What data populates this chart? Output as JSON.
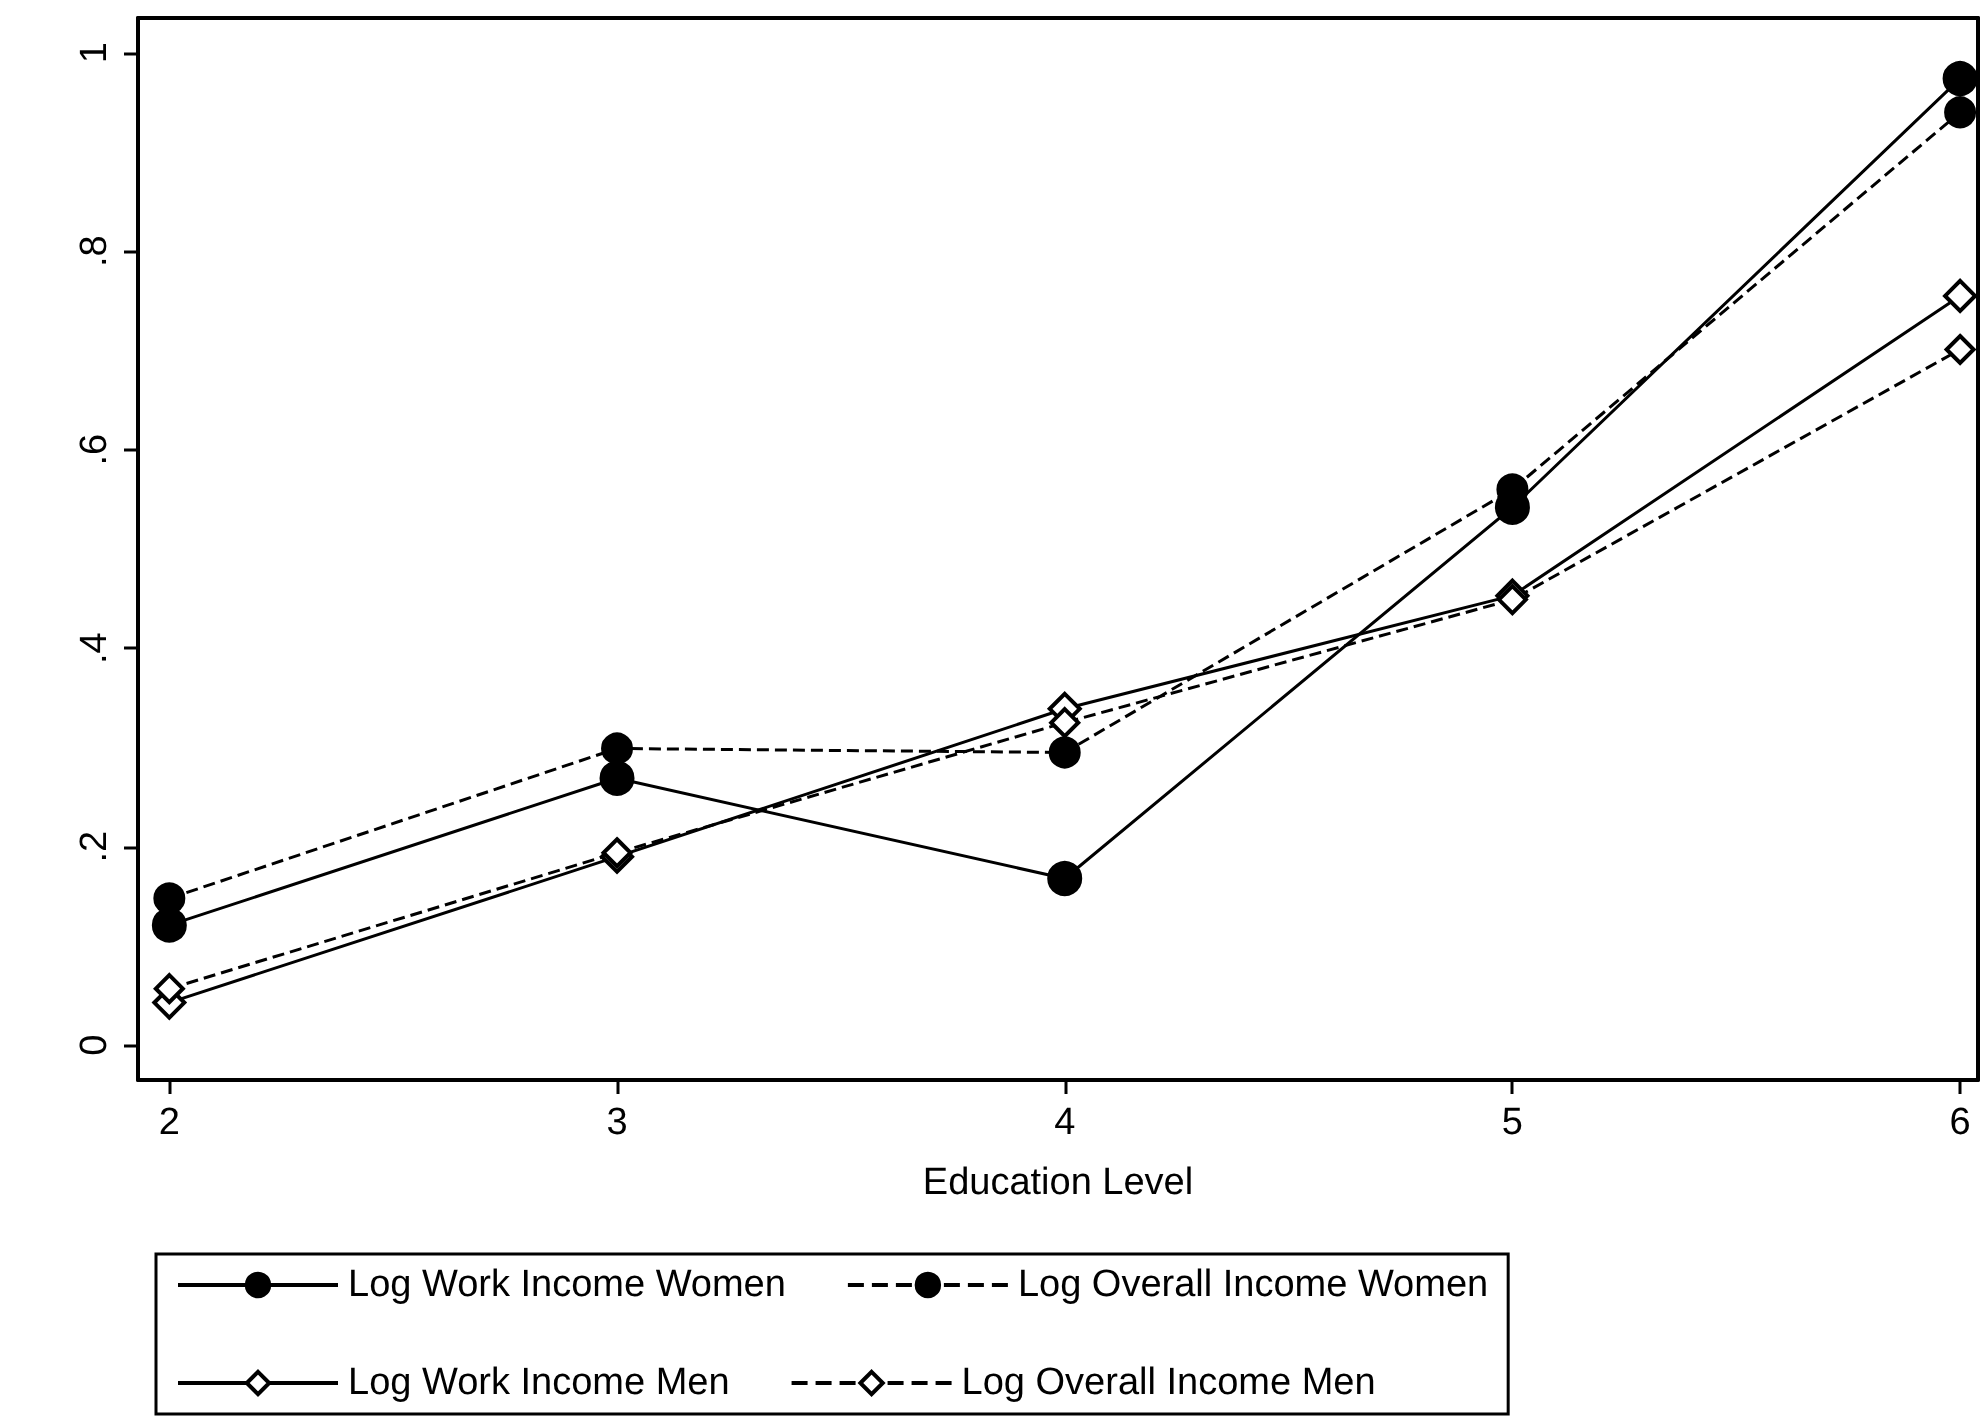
{
  "chart_data": {
    "type": "line",
    "xlabel": "Education Level",
    "x": [
      2,
      3,
      4,
      5,
      6
    ],
    "xlim": [
      1.93,
      6.04
    ],
    "xticks": [
      2,
      3,
      4,
      5,
      6
    ],
    "ylim": [
      -0.035,
      1.035
    ],
    "yticks": [
      0,
      {
        "value": 0.2,
        "label": ".2"
      },
      {
        "value": 0.4,
        "label": ".4"
      },
      {
        "value": 0.6,
        "label": ".6"
      },
      {
        "value": 0.8,
        "label": ".8"
      },
      1
    ],
    "grid": false,
    "legend": "bottom",
    "series": [
      {
        "name": "Log Work Income Women",
        "color": "#000000",
        "marker": "circle",
        "line_style": "solid",
        "values": [
          0.121,
          0.269,
          0.168,
          0.542,
          0.974
        ]
      },
      {
        "name": "Log Overall Income Women",
        "color": "#000000",
        "marker": "circle",
        "line_style": "dashed",
        "values": [
          0.148,
          0.299,
          0.295,
          0.56,
          0.94
        ]
      },
      {
        "name": "Log Work Income Men",
        "color": "#000000",
        "marker": "diamond",
        "line_style": "solid",
        "values": [
          0.043,
          0.19,
          0.339,
          0.453,
          0.755
        ]
      },
      {
        "name": "Log Overall Income Men",
        "color": "#000000",
        "marker": "diamond",
        "line_style": "dashed",
        "values": [
          0.057,
          0.194,
          0.325,
          0.449,
          0.701
        ]
      }
    ]
  }
}
